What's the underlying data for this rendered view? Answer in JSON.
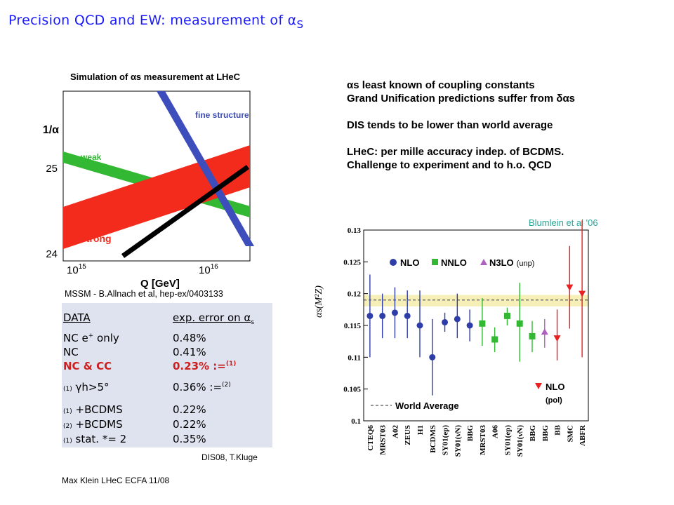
{
  "title": {
    "prefix": "Precision QCD and EW: measurement of ",
    "alpha": "α",
    "sub": "S"
  },
  "left_chart": {
    "title": "Simulation of αs measurement at LHeC",
    "y_axis_label": "1/α",
    "y_ticks": [
      "25",
      "24"
    ],
    "x_axis_label": "Q [GeV]",
    "x_ticks": [
      {
        "base": "10",
        "exp": "15"
      },
      {
        "base": "10",
        "exp": "16"
      }
    ],
    "bands": {
      "weak": "weak",
      "strong": "strong",
      "fine": "fine structure"
    },
    "colors": {
      "weak": "#33b833",
      "strong": "#f22b1c",
      "fine": "#3d4dbb"
    },
    "caption": "MSSM - B.Allnach et al, hep-ex/0403133"
  },
  "table": {
    "header": {
      "col1": "DATA",
      "col2": "exp. error on α"
    },
    "rows": [
      {
        "label": "NC e",
        "sup_label": "+",
        "label_tail": " only",
        "value": "0.48%"
      },
      {
        "label": "NC",
        "value": "0.41%"
      },
      {
        "label": "NC & CC",
        "value": "0.23% :=",
        "sup_value": "(1)",
        "highlight": true
      },
      {
        "prefix": "(1)",
        "label": "γh>5°",
        "value": "0.36% :=",
        "sup_value": "(2)"
      },
      {
        "prefix": "(1)",
        "label": "+BCDMS",
        "value": "0.22%"
      },
      {
        "prefix": "(2)",
        "label": "+BCDMS",
        "value": "0.22%"
      },
      {
        "prefix": "(1)",
        "label": "stat. *= 2",
        "value": "0.35%"
      }
    ],
    "credit": "DIS08, T.Kluge"
  },
  "footer": "Max Klein LHeC ECFA 11/08",
  "notes": [
    {
      "lines": [
        "αs least known of coupling constants",
        "Grand Unification predictions suffer from δαs"
      ]
    },
    {
      "lines": [
        "DIS tends to be lower than world average"
      ]
    },
    {
      "lines": [
        "LHeC: per mille accuracy indep. of BCDMS.",
        "Challenge to experiment and to h.o. QCD"
      ]
    }
  ],
  "chart_data": {
    "type": "scatter",
    "title": "Blumlein et al '06",
    "ylabel": "αs(M²Z)",
    "ylim": [
      0.1,
      0.13
    ],
    "yticks": [
      0.1,
      0.105,
      0.11,
      0.115,
      0.12,
      0.125,
      0.13
    ],
    "categories": [
      "CTEQ6",
      "MRST03",
      "A02",
      "ZEUS",
      "H1",
      "BCDMS",
      "SY01(ep)",
      "SY01(νN)",
      "BBG",
      "MRST03",
      "A06",
      "SY01(ep)",
      "SY01(νN)",
      "BBG",
      "BBG",
      "BB",
      "SMC",
      "ABFR"
    ],
    "world_average": {
      "label": "World Average",
      "value": 0.119,
      "band": [
        0.118,
        0.1198
      ]
    },
    "series": [
      {
        "name": "NLO",
        "marker": "circle",
        "color": "#2f3da8",
        "points": [
          [
            0,
            0.1165,
            0.11,
            0.123
          ],
          [
            1,
            0.1165,
            0.113,
            0.12
          ],
          [
            2,
            0.117,
            0.113,
            0.121
          ],
          [
            3,
            0.1165,
            0.113,
            0.1205
          ],
          [
            4,
            0.115,
            0.11,
            0.1205
          ],
          [
            5,
            0.11,
            0.104,
            0.116
          ],
          [
            6,
            0.1155,
            0.114,
            0.117
          ],
          [
            7,
            0.116,
            0.113,
            0.12
          ],
          [
            8,
            0.115,
            0.1125,
            0.1175
          ]
        ]
      },
      {
        "name": "NNLO",
        "marker": "square",
        "color": "#33b833",
        "points": [
          [
            9,
            0.1153,
            0.1118,
            0.1193
          ],
          [
            10,
            0.1128,
            0.1108,
            0.1147
          ],
          [
            11,
            0.1165,
            0.115,
            0.1178
          ],
          [
            12,
            0.1153,
            0.1093,
            0.1217
          ],
          [
            13,
            0.1133,
            0.1108,
            0.1157
          ]
        ]
      },
      {
        "name": "N3LO",
        "label_suffix": "(unp)",
        "marker": "triangle-up",
        "color": "#b060c0",
        "points": [
          [
            14,
            0.114,
            0.1115,
            0.116
          ]
        ]
      },
      {
        "name": "NLO",
        "label_suffix": "(pol)",
        "marker": "triangle-down",
        "color": "#e82020",
        "points": [
          [
            15,
            0.113,
            0.1095,
            0.1175
          ],
          [
            16,
            0.121,
            0.1145,
            0.1275
          ],
          [
            17,
            0.12,
            0.11,
            0.1315
          ]
        ]
      }
    ]
  }
}
